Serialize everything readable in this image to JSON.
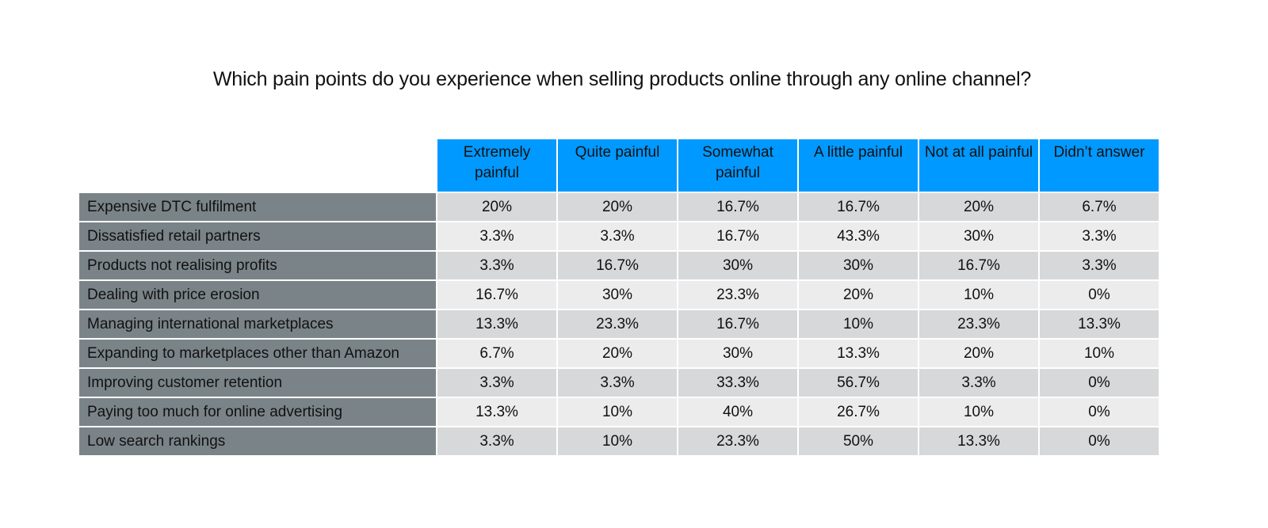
{
  "title": "Which pain points do you experience when selling products online through any online channel?",
  "colors": {
    "header_bg": "#0099ff",
    "row_label_bg": "#7a8488",
    "row_odd_bg": "#d6d8d9",
    "row_even_bg": "#ececec"
  },
  "chart_data": {
    "type": "table",
    "title": "Which pain points do you experience when selling products online through any online channel?",
    "columns": [
      "Extremely painful",
      "Quite painful",
      "Somewhat painful",
      "A little painful",
      "Not at all painful",
      "Didn’t answer"
    ],
    "rows": [
      {
        "label": "Expensive DTC fulfilment",
        "values": [
          "20%",
          "20%",
          "16.7%",
          "16.7%",
          "20%",
          "6.7%"
        ]
      },
      {
        "label": "Dissatisfied retail partners",
        "values": [
          "3.3%",
          "3.3%",
          "16.7%",
          "43.3%",
          "30%",
          "3.3%"
        ]
      },
      {
        "label": "Products not realising profits",
        "values": [
          "3.3%",
          "16.7%",
          "30%",
          "30%",
          "16.7%",
          "3.3%"
        ]
      },
      {
        "label": "Dealing with price erosion",
        "values": [
          "16.7%",
          "30%",
          "23.3%",
          "20%",
          "10%",
          "0%"
        ]
      },
      {
        "label": "Managing international marketplaces",
        "values": [
          "13.3%",
          "23.3%",
          "16.7%",
          "10%",
          "23.3%",
          "13.3%"
        ]
      },
      {
        "label": "Expanding to marketplaces other than Amazon",
        "values": [
          "6.7%",
          "20%",
          "30%",
          "13.3%",
          "20%",
          "10%"
        ]
      },
      {
        "label": "Improving customer retention",
        "values": [
          "3.3%",
          "3.3%",
          "33.3%",
          "56.7%",
          "3.3%",
          "0%"
        ]
      },
      {
        "label": "Paying too much for online advertising",
        "values": [
          "13.3%",
          "10%",
          "40%",
          "26.7%",
          "10%",
          "0%"
        ]
      },
      {
        "label": "Low search rankings",
        "values": [
          "3.3%",
          "10%",
          "23.3%",
          "50%",
          "13.3%",
          "0%"
        ]
      }
    ]
  }
}
